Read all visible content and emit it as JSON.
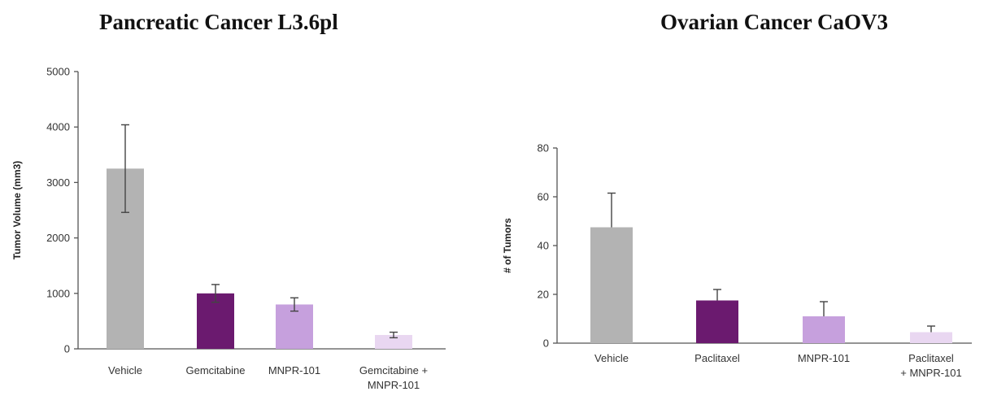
{
  "chart_data": [
    {
      "type": "bar",
      "title": "Pancreatic Cancer L3.6pl",
      "ylabel": "Tumor Volume (mm3)",
      "xlabel": "",
      "ylim": [
        0,
        5000
      ],
      "yticks": [
        0,
        1000,
        2000,
        3000,
        4000,
        5000
      ],
      "grid": false,
      "categories": [
        [
          "Vehicle"
        ],
        [
          "Gemcitabine"
        ],
        [
          "MNPR-101"
        ],
        [
          "Gemcitabine +",
          "MNPR-101"
        ]
      ],
      "values": [
        3250,
        1000,
        800,
        250
      ],
      "errors": [
        790,
        160,
        120,
        50
      ],
      "error_style": "both",
      "colors": [
        "#b3b3b3",
        "#6b1a6f",
        "#c6a0dd",
        "#e9d7f1"
      ]
    },
    {
      "type": "bar",
      "title": "Ovarian Cancer CaOV3",
      "ylabel": "# of Tumors",
      "xlabel": "",
      "ylim": [
        0,
        80
      ],
      "yticks": [
        0,
        20,
        40,
        60,
        80
      ],
      "grid": false,
      "categories": [
        [
          "Vehicle"
        ],
        [
          "Paclitaxel"
        ],
        [
          "MNPR-101"
        ],
        [
          "Paclitaxel",
          "+ MNPR-101"
        ]
      ],
      "values": [
        47.5,
        17.5,
        11,
        4.5
      ],
      "errors": [
        14,
        4.5,
        6,
        2.5
      ],
      "error_style": "up",
      "colors": [
        "#b3b3b3",
        "#6b1a6f",
        "#c6a0dd",
        "#e9d7f1"
      ]
    }
  ]
}
